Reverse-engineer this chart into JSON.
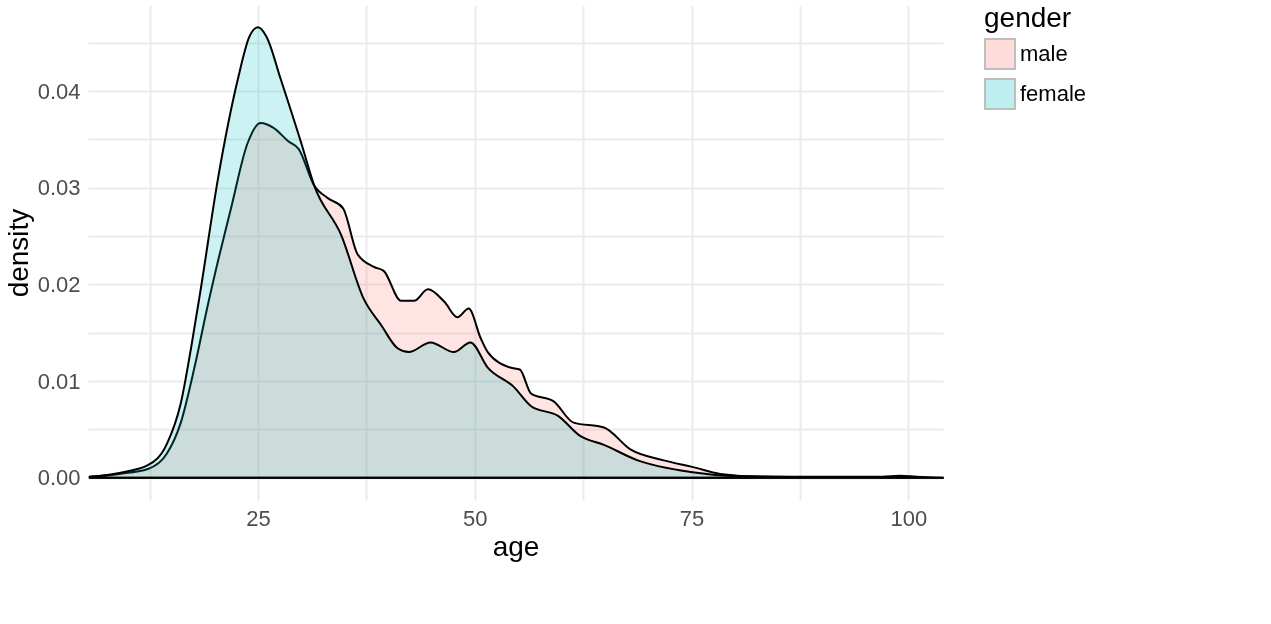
{
  "chart_data": {
    "type": "area",
    "xlabel": "age",
    "ylabel": "density",
    "legend_title": "gender",
    "legend": "right",
    "grid": true,
    "xlim": [
      5.4,
      104
    ],
    "ylim": [
      -0.0023,
      0.0489
    ],
    "xticks": [
      {
        "value": 12.5,
        "label": null
      },
      25,
      {
        "value": 37.5,
        "label": null
      },
      50,
      {
        "value": 62.5,
        "label": null
      },
      75,
      {
        "value": 87.5,
        "label": null
      },
      100
    ],
    "yticks": [
      {
        "value": 0,
        "label": "0.00"
      },
      {
        "value": 0.005,
        "label": null
      },
      0.01,
      {
        "value": 0.015,
        "label": null
      },
      0.02,
      {
        "value": 0.025,
        "label": null
      },
      0.03,
      {
        "value": 0.035,
        "label": null
      },
      0.04,
      {
        "value": 0.045,
        "label": null
      }
    ],
    "series": [
      {
        "name": "male",
        "color": "#f8766d",
        "x": [
          5.6,
          9,
          12.3,
          14.5,
          16.1,
          17.7,
          19.2,
          20.6,
          21.9,
          23.8,
          25.3,
          26.8,
          28.5,
          29.7,
          31.5,
          33.1,
          34.8,
          36.5,
          38.4,
          39.5,
          41.5,
          43,
          44.6,
          46.5,
          48,
          49.3,
          50.7,
          51.5,
          54.1,
          55.2,
          56.5,
          59.1,
          61.4,
          64.9,
          68,
          71.8,
          75.2,
          78.3,
          83.3,
          90,
          97,
          99,
          101,
          104
        ],
        "values": [
          0.0001,
          0.0004,
          0.0009,
          0.0025,
          0.0057,
          0.0115,
          0.0178,
          0.0232,
          0.0279,
          0.0346,
          0.0367,
          0.0362,
          0.0348,
          0.034,
          0.0302,
          0.0289,
          0.0279,
          0.0231,
          0.0218,
          0.0214,
          0.0183,
          0.0183,
          0.0195,
          0.0182,
          0.0166,
          0.0175,
          0.0144,
          0.013,
          0.0114,
          0.0112,
          0.0087,
          0.0079,
          0.0057,
          0.0052,
          0.0029,
          0.0018,
          0.0011,
          0.0004,
          0.0001,
          0.0001,
          0.0001,
          0.0002,
          0.0001,
          0.0
        ]
      },
      {
        "name": "female",
        "color": "#00bfc4",
        "x": [
          5.6,
          9,
          12.3,
          14.5,
          16.1,
          17.3,
          18.4,
          20.4,
          22.7,
          24,
          25,
          26,
          27.6,
          30,
          31.5,
          34.6,
          37.2,
          39.2,
          41.1,
          42.4,
          44.9,
          47.6,
          49.5,
          51.5,
          54.5,
          56.5,
          59.6,
          62.2,
          64.9,
          68.8,
          74.9,
          79.5,
          85,
          95,
          104
        ],
        "values": [
          0.0001,
          0.0005,
          0.0013,
          0.0035,
          0.0077,
          0.0135,
          0.0195,
          0.031,
          0.0413,
          0.0456,
          0.0466,
          0.0456,
          0.0413,
          0.0346,
          0.0302,
          0.0251,
          0.0185,
          0.0158,
          0.0134,
          0.013,
          0.014,
          0.013,
          0.014,
          0.0114,
          0.0094,
          0.0074,
          0.0064,
          0.0043,
          0.0034,
          0.0018,
          0.0006,
          0.0002,
          0.0001,
          0.0,
          0.0
        ]
      }
    ]
  }
}
